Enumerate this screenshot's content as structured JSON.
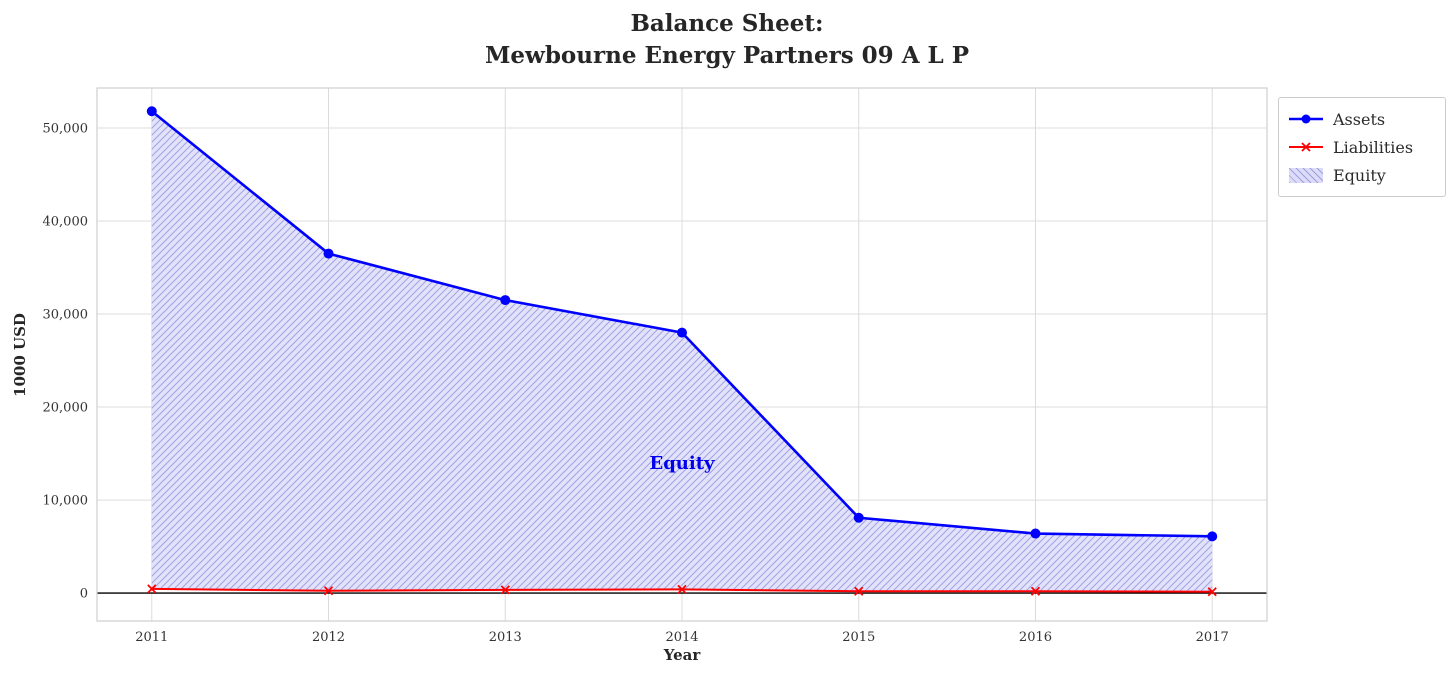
{
  "chart_data": {
    "type": "line",
    "title_lines": [
      "Balance Sheet:",
      "Mewbourne Energy Partners 09 A L P"
    ],
    "xlabel": "Year",
    "ylabel": "1000 USD",
    "x": [
      2011,
      2012,
      2013,
      2014,
      2015,
      2016,
      2017
    ],
    "xtick_labels": [
      "2011",
      "2012",
      "2013",
      "2014",
      "2015",
      "2016",
      "2017"
    ],
    "yticks": {
      "values": [
        0,
        10000,
        20000,
        30000,
        40000,
        50000
      ],
      "labels": [
        "0",
        "10,000",
        "20,000",
        "30,000",
        "40,000",
        "50,000"
      ]
    },
    "xlim": [
      2010.69,
      2017.31
    ],
    "ylim": [
      -3000,
      54300
    ],
    "grid": true,
    "series": [
      {
        "name": "Assets",
        "color": "#0000ff",
        "marker": "circle",
        "line_width": 2.6,
        "values": [
          51800,
          36500,
          31500,
          28000,
          8100,
          6400,
          6100
        ]
      },
      {
        "name": "Liabilities",
        "color": "#ff0000",
        "marker": "x",
        "line_width": 2,
        "values": [
          450,
          250,
          350,
          400,
          200,
          200,
          150
        ]
      }
    ],
    "fill": {
      "name": "Equity",
      "between": [
        "Assets",
        "Liabilities"
      ],
      "fill_color": "#e2e2fa",
      "hatch_color": "#a3a3e6",
      "annotation": {
        "text": "Equity",
        "x": 2014,
        "y": 14000,
        "color": "#0000ee"
      }
    },
    "legend": {
      "position": "upper-right-outside",
      "entries": [
        "Assets",
        "Liabilities",
        "Equity"
      ]
    },
    "zero_line_color": "#000000",
    "grid_color": "#dcdcdc",
    "border_color": "#cfcfcf",
    "tick_label_color": "#333333"
  }
}
